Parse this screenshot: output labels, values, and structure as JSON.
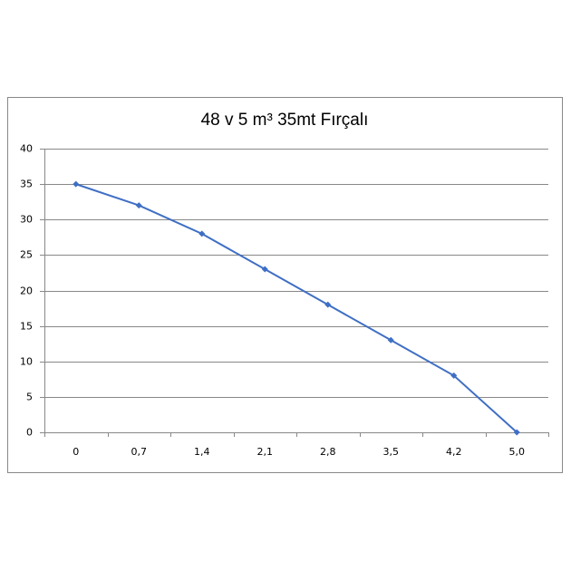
{
  "chart_data": {
    "type": "line",
    "title": "48 v 5 m³  35mt Fırçalı",
    "categories": [
      "0",
      "0,7",
      "1,4",
      "2,1",
      "2,8",
      "3,5",
      "4,2",
      "5,0"
    ],
    "series": [
      {
        "color": "#3f6fc4",
        "values": [
          35,
          32,
          28,
          23,
          18,
          13,
          8,
          0
        ]
      }
    ],
    "ylim": [
      0,
      40
    ],
    "yticks": [
      0,
      5,
      10,
      15,
      20,
      25,
      30,
      35,
      40
    ],
    "grid": true
  }
}
